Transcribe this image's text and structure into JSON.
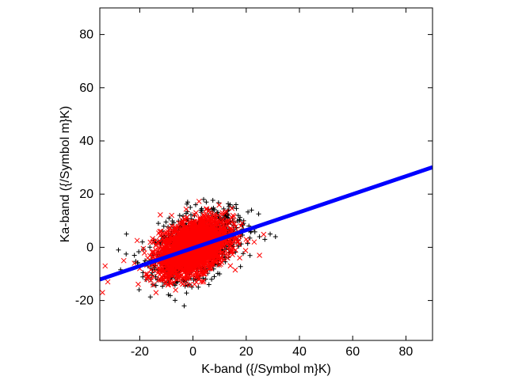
{
  "chart_data": {
    "type": "scatter",
    "title": "",
    "xlabel": "K-band ({/Symbol m}K)",
    "ylabel": "Ka-band ({/Symbol m}K)",
    "xlim": [
      -35,
      90
    ],
    "ylim": [
      -35,
      90
    ],
    "xticks": [
      -20,
      0,
      20,
      40,
      60,
      80
    ],
    "yticks": [
      -20,
      0,
      20,
      40,
      60,
      80
    ],
    "grid": false,
    "legend": "none",
    "series": [
      {
        "marker": "plus",
        "color": "#000000",
        "x": [
          -28,
          -25,
          -22,
          -19,
          -16,
          -13,
          -11,
          -9,
          -7,
          -5,
          -3,
          -1,
          1,
          3,
          5,
          7,
          9,
          11,
          13,
          15,
          17,
          19,
          21,
          23,
          25,
          27,
          29,
          31,
          10,
          6,
          2,
          18,
          22,
          14,
          8,
          4,
          -2,
          -12,
          -18,
          -6
        ],
        "y": [
          -1,
          5,
          -3,
          2,
          -6,
          9,
          -8,
          11,
          -10,
          12,
          -13,
          15,
          16,
          14,
          17,
          -12,
          13,
          10,
          11,
          15,
          12,
          9,
          8,
          7,
          4,
          3,
          5,
          4,
          -10,
          -14,
          -15,
          6,
          14,
          16,
          -11,
          18,
          17,
          -9,
          -5,
          -12
        ]
      },
      {
        "marker": "cross",
        "color": "#ff0000",
        "x": [
          -34,
          -33,
          -32,
          -26,
          -22,
          -20,
          -17,
          -15,
          -13,
          -12,
          -10,
          -9,
          -8,
          -7,
          -6,
          -5,
          -4,
          -3,
          -2,
          -1,
          0,
          1,
          2,
          3,
          4,
          5,
          6,
          7,
          8,
          9,
          10,
          11,
          12,
          13,
          14,
          15,
          16,
          18,
          20,
          23,
          25,
          -11,
          -6,
          -2,
          3,
          8,
          13,
          -14,
          6,
          0,
          -4,
          10,
          -8,
          4,
          17
        ],
        "y": [
          -17,
          -7,
          -13,
          -5,
          -6,
          -8,
          -4,
          -11,
          -2,
          6,
          2,
          -9,
          8,
          -1,
          -6,
          4,
          10,
          -3,
          1,
          -8,
          3,
          9,
          -4,
          6,
          -7,
          11,
          2,
          -3,
          10,
          -5,
          4,
          13,
          7,
          -2,
          5,
          12,
          -1,
          8,
          3,
          2,
          -3,
          -12,
          -11,
          -9,
          -13,
          1,
          -4,
          -1,
          14,
          0,
          7,
          -5,
          12,
          -10,
          6
        ]
      },
      {
        "name": "",
        "marker": "line",
        "color": "#0000ff",
        "x": [
          -35,
          90
        ],
        "y": [
          -12.1,
          30.1
        ]
      }
    ]
  }
}
